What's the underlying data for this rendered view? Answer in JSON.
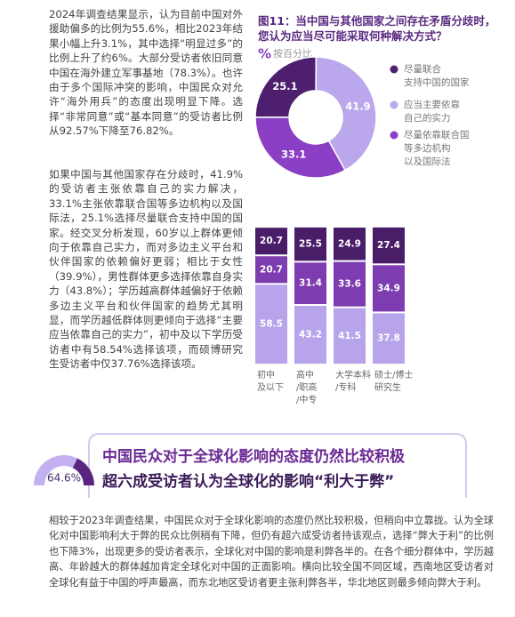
{
  "paragraphs": [
    "2024年调查结果显示，认为目前中国对外援助偏多的比例为55.6%，相比2023年结果小幅上升3.1%，其中选择“明显过多”的比例上升了约6%。大部分受访者依旧同意中国在海外建立军事基地（78.3%）。也许由于多个国际冲突的影响，中国民众对允许“海外用兵”的态度出现明显下降。选择“非常同意”或“基本同意”的受访者比例从92.57%下降至76.82%。",
    "如果中国与其他国家存在分歧时，41.9%的受访者主张依靠自己的实力解决，33.1%主张依靠联合国等多边机构以及国际法，25.1%选择尽量联合支持中国的国家。经交叉分析发现，60岁以上群体更倾向于依靠自己实力，而对多边主义平台和伙伴国家的依赖偏好更弱；相比于女性（39.9%），男性群体更多选择依靠自身实力（43.8%）；学历越高群体越偏好于依赖多边主义平台和伙伴国家的趋势尤其明显，而学历越低群体则更倾向于选择“主要应当依靠自己的实力”，初中及以下学历受访者中有58.54%选择该项，而硕博研究生受访者中仅37.76%选择该项。",
    "相较于2023年调查结果，中国民众对于全球化影响的态度仍然比较积极，但稍向中立靠拢。认为全球化对中国影响利大于弊的民众比例稍有下降，但仍有超六成受访者持该观点，选择“弊大于利”的比例也下降3%，出现更多的受访者表示，全球化对中国的影响是利弊各半的。在各个细分群体中，学历越高、年龄越大的群体越加肯定全球化对中国的正面影响。横向比较全国不同区域，西南地区受访者对全球化有益于中国的呼声最高，而东北地区受访者更主张利弊各半，华北地区则最多倾向弊大于利。"
  ],
  "section": {
    "title": "中国民众对于全球化影响的态度仍然比较积极",
    "subtitle": "超六成受访者认为全球化的影响“利大于弊”"
  },
  "chart_data": [
    {
      "type": "pie",
      "title": "图11：当中国与其他国家之间存在矛盾分歧时，\n您认为应当尽可能采取何种解决方式？",
      "subtitle_icon": "%",
      "subtitle": "按百分比",
      "categories": [
        "尽量联合\n支持中国的国家",
        "应当主要依靠\n自己的实力",
        "尽量依靠联合国\n等多边机构\n以及国际法"
      ],
      "values": [
        25.1,
        41.9,
        33.1
      ],
      "colors": [
        "#4d1f6e",
        "#bba8ec",
        "#8a3fc4"
      ]
    },
    {
      "type": "stacked-bar",
      "categories": [
        "初中\n及以下",
        "高中\n/职高\n/中专",
        "大学本科\n/专科",
        "硕士/博士\n研究生"
      ],
      "ylim": [
        0,
        100
      ],
      "series": [
        {
          "color": "#b7a4ea",
          "values": [
            58.5,
            43.2,
            41.5,
            37.8
          ]
        },
        {
          "color": "#7d3db0",
          "values": [
            20.7,
            31.4,
            33.6,
            34.9
          ]
        },
        {
          "color": "#4a1d68",
          "values": [
            20.7,
            25.5,
            24.9,
            27.4
          ]
        }
      ]
    },
    {
      "type": "gauge",
      "values": [
        64.6
      ],
      "value_labels": [
        "64.6%"
      ],
      "ylim": [
        0,
        100
      ],
      "colors": [
        "#c3b2ef",
        "#5a2580"
      ]
    }
  ]
}
